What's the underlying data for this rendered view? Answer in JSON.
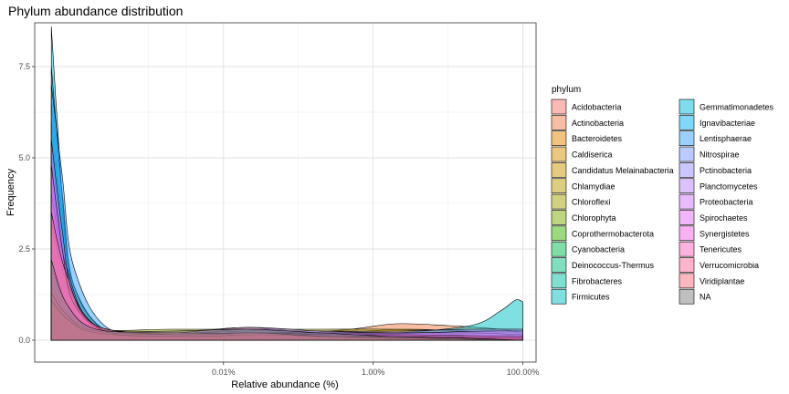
{
  "chart_data": {
    "type": "area",
    "title": "Phylum abundance distribution",
    "xlabel": "Relative abundance (%)",
    "ylabel": "Frequency",
    "x_scale": "log10",
    "xlim": [
      3e-05,
      150
    ],
    "ylim": [
      -0.6,
      8.7
    ],
    "x_ticks": [
      {
        "value": 0.01,
        "label": "0.01%"
      },
      {
        "value": 1,
        "label": "1.00%"
      },
      {
        "value": 100,
        "label": "100.00%"
      }
    ],
    "y_ticks": [
      {
        "value": 0,
        "label": "0.0"
      },
      {
        "value": 2.5,
        "label": "2.5"
      },
      {
        "value": 5,
        "label": "5.0"
      },
      {
        "value": 7.5,
        "label": "7.5"
      }
    ],
    "grid": true,
    "legend": {
      "title": "phylum",
      "position": "right",
      "columns": 2
    },
    "series": [
      {
        "name": "Acidobacteria",
        "color": "#F8766D",
        "points": [
          [
            5e-05,
            1.0
          ],
          [
            8e-05,
            0.6
          ],
          [
            0.0002,
            0.15
          ],
          [
            0.003,
            0.1
          ],
          [
            0.03,
            0.2
          ],
          [
            0.3,
            0.1
          ],
          [
            3,
            0.15
          ],
          [
            30,
            0.1
          ],
          [
            100,
            0.05
          ]
        ]
      },
      {
        "name": "Actinobacteria",
        "color": "#F07E4A",
        "points": [
          [
            5e-05,
            1.2
          ],
          [
            8e-05,
            0.7
          ],
          [
            0.0002,
            0.2
          ],
          [
            0.005,
            0.15
          ],
          [
            0.05,
            0.15
          ],
          [
            0.5,
            0.3
          ],
          [
            2,
            0.45
          ],
          [
            10,
            0.4
          ],
          [
            50,
            0.3
          ],
          [
            100,
            0.2
          ]
        ]
      },
      {
        "name": "Bacteroidetes",
        "color": "#E58700",
        "points": [
          [
            5e-05,
            2.0
          ],
          [
            8e-05,
            1.0
          ],
          [
            0.0002,
            0.3
          ],
          [
            0.002,
            0.2
          ],
          [
            0.02,
            0.35
          ],
          [
            0.2,
            0.2
          ],
          [
            3,
            0.3
          ],
          [
            30,
            0.2
          ],
          [
            100,
            0.1
          ]
        ]
      },
      {
        "name": "Caldiserica",
        "color": "#D89000",
        "points": [
          [
            5e-05,
            4.5
          ],
          [
            7e-05,
            3.0
          ],
          [
            0.0001,
            1.2
          ],
          [
            0.0003,
            0.2
          ],
          [
            0.003,
            0.1
          ],
          [
            0.03,
            0.15
          ],
          [
            0.3,
            0.05
          ],
          [
            100,
            0.0
          ]
        ]
      },
      {
        "name": "Candidatus Melainabacteria",
        "color": "#C99800",
        "points": [
          [
            5e-05,
            5.5
          ],
          [
            7e-05,
            3.5
          ],
          [
            0.0001,
            1.5
          ],
          [
            0.0003,
            0.2
          ],
          [
            0.003,
            0.05
          ],
          [
            0.01,
            0.0
          ],
          [
            100,
            0.0
          ]
        ]
      },
      {
        "name": "Chlamydiae",
        "color": "#B79F00",
        "points": [
          [
            5e-05,
            6.5
          ],
          [
            7e-05,
            4.0
          ],
          [
            0.0001,
            1.5
          ],
          [
            0.0003,
            0.2
          ],
          [
            0.002,
            0.1
          ],
          [
            0.02,
            0.05
          ],
          [
            100,
            0.0
          ]
        ]
      },
      {
        "name": "Chloroflexi",
        "color": "#A3A500",
        "points": [
          [
            5e-05,
            1.5
          ],
          [
            8e-05,
            0.8
          ],
          [
            0.0002,
            0.3
          ],
          [
            0.002,
            0.3
          ],
          [
            0.02,
            0.3
          ],
          [
            0.2,
            0.3
          ],
          [
            2,
            0.3
          ],
          [
            20,
            0.25
          ],
          [
            100,
            0.2
          ]
        ]
      },
      {
        "name": "Chlorophyta",
        "color": "#7CAE00",
        "points": [
          [
            5e-05,
            3.5
          ],
          [
            8e-05,
            1.5
          ],
          [
            0.0002,
            0.3
          ],
          [
            0.003,
            0.2
          ],
          [
            0.03,
            0.3
          ],
          [
            0.3,
            0.1
          ],
          [
            100,
            0.0
          ]
        ]
      },
      {
        "name": "Coprothermobacterota",
        "color": "#39B600",
        "points": [
          [
            5e-05,
            4.0
          ],
          [
            7e-05,
            2.0
          ],
          [
            0.0001,
            0.8
          ],
          [
            0.0003,
            0.15
          ],
          [
            0.003,
            0.1
          ],
          [
            0.03,
            0.05
          ],
          [
            100,
            0.0
          ]
        ]
      },
      {
        "name": "Cyanobacteria",
        "color": "#00BB4E",
        "points": [
          [
            5e-05,
            3.0
          ],
          [
            8e-05,
            1.2
          ],
          [
            0.0002,
            0.3
          ],
          [
            0.003,
            0.2
          ],
          [
            0.03,
            0.25
          ],
          [
            0.3,
            0.15
          ],
          [
            100,
            0.05
          ]
        ]
      },
      {
        "name": "Deinococcus-Thermus",
        "color": "#00BF7D",
        "points": [
          [
            5e-05,
            5.0
          ],
          [
            7e-05,
            3.0
          ],
          [
            0.0001,
            1.0
          ],
          [
            0.0003,
            0.2
          ],
          [
            0.003,
            0.1
          ],
          [
            0.03,
            0.05
          ],
          [
            100,
            0.0
          ]
        ]
      },
      {
        "name": "Fibrobacteres",
        "color": "#00C1A3",
        "points": [
          [
            5e-05,
            6.0
          ],
          [
            7e-05,
            3.5
          ],
          [
            0.0001,
            1.2
          ],
          [
            0.0003,
            0.2
          ],
          [
            0.003,
            0.1
          ],
          [
            100,
            0.0
          ]
        ]
      },
      {
        "name": "Firmicutes",
        "color": "#00BFC4",
        "points": [
          [
            5e-05,
            2.5
          ],
          [
            8e-05,
            1.2
          ],
          [
            0.0002,
            0.3
          ],
          [
            0.002,
            0.15
          ],
          [
            0.02,
            0.2
          ],
          [
            0.2,
            0.15
          ],
          [
            2,
            0.2
          ],
          [
            20,
            0.4
          ],
          [
            50,
            0.8
          ],
          [
            80,
            1.1
          ],
          [
            100,
            1.05
          ]
        ]
      },
      {
        "name": "Gemmatimonadetes",
        "color": "#00BAE0",
        "points": [
          [
            5e-05,
            8.6
          ],
          [
            6e-05,
            6.0
          ],
          [
            8e-05,
            2.5
          ],
          [
            0.00012,
            0.8
          ],
          [
            0.0003,
            0.2
          ],
          [
            0.003,
            0.1
          ],
          [
            0.03,
            0.05
          ],
          [
            100,
            0.0
          ]
        ]
      },
      {
        "name": "Ignavibacteriae",
        "color": "#00B0F6",
        "points": [
          [
            5e-05,
            7.5
          ],
          [
            7e-05,
            4.0
          ],
          [
            0.0001,
            1.5
          ],
          [
            0.0003,
            0.2
          ],
          [
            0.003,
            0.05
          ],
          [
            100,
            0.0
          ]
        ]
      },
      {
        "name": "Lentisphaerae",
        "color": "#35A2FF",
        "points": [
          [
            5e-05,
            7.0
          ],
          [
            7e-05,
            4.5
          ],
          [
            0.0001,
            2.0
          ],
          [
            0.0003,
            0.3
          ],
          [
            0.003,
            0.1
          ],
          [
            0.03,
            0.05
          ],
          [
            100,
            0.0
          ]
        ]
      },
      {
        "name": "Nitrospirae",
        "color": "#7997FF",
        "points": [
          [
            5e-05,
            4.0
          ],
          [
            8e-05,
            2.0
          ],
          [
            0.0002,
            0.4
          ],
          [
            0.003,
            0.2
          ],
          [
            0.03,
            0.2
          ],
          [
            0.3,
            0.1
          ],
          [
            100,
            0.05
          ]
        ]
      },
      {
        "name": "Pctinobacteria",
        "color": "#9590FF",
        "points": [
          [
            5e-05,
            3.2
          ],
          [
            8e-05,
            1.6
          ],
          [
            0.0002,
            0.4
          ],
          [
            0.002,
            0.2
          ],
          [
            0.02,
            0.25
          ],
          [
            0.2,
            0.25
          ],
          [
            2,
            0.25
          ],
          [
            20,
            0.3
          ],
          [
            100,
            0.3
          ]
        ]
      },
      {
        "name": "Planctomycetes",
        "color": "#B983FF",
        "points": [
          [
            5e-05,
            2.0
          ],
          [
            8e-05,
            1.0
          ],
          [
            0.0002,
            0.3
          ],
          [
            0.002,
            0.2
          ],
          [
            0.02,
            0.35
          ],
          [
            0.2,
            0.25
          ],
          [
            2,
            0.2
          ],
          [
            20,
            0.2
          ],
          [
            100,
            0.15
          ]
        ]
      },
      {
        "name": "Proteobacteria",
        "color": "#D277FF",
        "points": [
          [
            5e-05,
            1.5
          ],
          [
            8e-05,
            0.8
          ],
          [
            0.0002,
            0.3
          ],
          [
            0.003,
            0.15
          ],
          [
            0.03,
            0.2
          ],
          [
            0.3,
            0.2
          ],
          [
            3,
            0.2
          ],
          [
            30,
            0.25
          ],
          [
            100,
            0.25
          ]
        ]
      },
      {
        "name": "Spirochaetes",
        "color": "#E76BF3",
        "points": [
          [
            5e-05,
            5.5
          ],
          [
            7e-05,
            3.0
          ],
          [
            0.0001,
            1.2
          ],
          [
            0.0003,
            0.2
          ],
          [
            0.003,
            0.1
          ],
          [
            0.03,
            0.1
          ],
          [
            100,
            0.0
          ]
        ]
      },
      {
        "name": "Synergistetes",
        "color": "#F564E3",
        "points": [
          [
            5e-05,
            4.8
          ],
          [
            7e-05,
            2.5
          ],
          [
            0.0001,
            1.0
          ],
          [
            0.0003,
            0.2
          ],
          [
            0.003,
            0.1
          ],
          [
            0.03,
            0.05
          ],
          [
            100,
            0.0
          ]
        ]
      },
      {
        "name": "Tenericutes",
        "color": "#FF62BC",
        "points": [
          [
            5e-05,
            1.3
          ],
          [
            8e-05,
            0.7
          ],
          [
            0.0002,
            0.25
          ],
          [
            0.003,
            0.15
          ],
          [
            0.03,
            0.2
          ],
          [
            0.3,
            0.15
          ],
          [
            3,
            0.15
          ],
          [
            100,
            0.1
          ]
        ]
      },
      {
        "name": "Verrucomicrobia",
        "color": "#FF6A98",
        "points": [
          [
            5e-05,
            1.1
          ],
          [
            8e-05,
            0.6
          ],
          [
            0.0002,
            0.2
          ],
          [
            0.003,
            0.1
          ],
          [
            0.03,
            0.15
          ],
          [
            0.3,
            0.1
          ],
          [
            3,
            0.1
          ],
          [
            100,
            0.05
          ]
        ]
      },
      {
        "name": "Viridiplantae",
        "color": "#FC717F",
        "points": [
          [
            5e-05,
            3.5
          ],
          [
            8e-05,
            1.8
          ],
          [
            0.0002,
            0.4
          ],
          [
            0.003,
            0.2
          ],
          [
            0.03,
            0.2
          ],
          [
            0.3,
            0.1
          ],
          [
            100,
            0.0
          ]
        ]
      },
      {
        "name": "NA",
        "color": "#7F7F7F",
        "points": [
          [
            5e-05,
            2.2
          ],
          [
            8e-05,
            1.0
          ],
          [
            0.0002,
            0.3
          ],
          [
            0.002,
            0.25
          ],
          [
            0.02,
            0.3
          ],
          [
            0.2,
            0.2
          ],
          [
            2,
            0.1
          ],
          [
            20,
            0.05
          ],
          [
            100,
            0.0
          ]
        ]
      }
    ]
  }
}
